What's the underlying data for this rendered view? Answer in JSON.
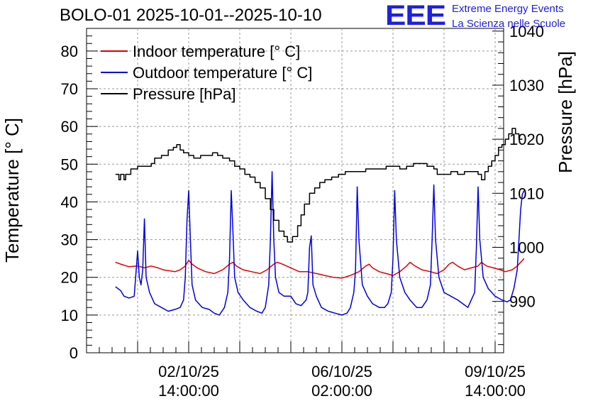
{
  "header": {
    "title": "BOLO-01 2025-10-01--2025-10-10",
    "logo_text": "EEE",
    "logo_line1": "Extreme Energy Events",
    "logo_line2": "La Scienza nelle Scuole"
  },
  "chart_data": {
    "type": "line",
    "title": "BOLO-01 2025-10-01--2025-10-10",
    "ylabel": "Temperature [° C]",
    "y2label": "Pressure [hPa]",
    "xlabel": "",
    "ylim": [
      0,
      86
    ],
    "y2lim": [
      980.5,
      1040.5
    ],
    "yticks": [
      "0",
      "10",
      "20",
      "30",
      "40",
      "50",
      "60",
      "70",
      "80"
    ],
    "y2ticks": [
      "990",
      "1000",
      "1010",
      "1020",
      "1030",
      "1040"
    ],
    "xlim": [
      0,
      245
    ],
    "xticks": [
      {
        "x": 60,
        "line1": "02/10/25",
        "line2": "14:00:00"
      },
      {
        "x": 150,
        "line1": "06/10/25",
        "line2": "02:00:00"
      },
      {
        "x": 240,
        "line1": "09/10/25",
        "line2": "14:00:00"
      }
    ],
    "grid": true,
    "legend_position": "top-left",
    "series": [
      {
        "name": "Indoor temperature [° C]",
        "color": "#e00000",
        "axis": "left",
        "points": [
          [
            17,
            24
          ],
          [
            20,
            23.5
          ],
          [
            25,
            22.8
          ],
          [
            30,
            23
          ],
          [
            34,
            22.5
          ],
          [
            38,
            23
          ],
          [
            42,
            22.5
          ],
          [
            45,
            22
          ],
          [
            48,
            21.8
          ],
          [
            52,
            21.5
          ],
          [
            55,
            22
          ],
          [
            58,
            23
          ],
          [
            60,
            24.5
          ],
          [
            62,
            23.5
          ],
          [
            65,
            22.5
          ],
          [
            70,
            21.5
          ],
          [
            75,
            21
          ],
          [
            80,
            22
          ],
          [
            84,
            23.5
          ],
          [
            86,
            24
          ],
          [
            88,
            23
          ],
          [
            92,
            22
          ],
          [
            97,
            21.5
          ],
          [
            102,
            21
          ],
          [
            106,
            22
          ],
          [
            110,
            23.5
          ],
          [
            112,
            24
          ],
          [
            115,
            23.5
          ],
          [
            120,
            22.5
          ],
          [
            125,
            21.5
          ],
          [
            130,
            21.5
          ],
          [
            135,
            21
          ],
          [
            140,
            20.5
          ],
          [
            145,
            20
          ],
          [
            150,
            19.8
          ],
          [
            155,
            20.5
          ],
          [
            160,
            21.5
          ],
          [
            164,
            23
          ],
          [
            166,
            23.5
          ],
          [
            168,
            22.5
          ],
          [
            172,
            21.5
          ],
          [
            176,
            21
          ],
          [
            180,
            20.5
          ],
          [
            184,
            21.5
          ],
          [
            188,
            23
          ],
          [
            190,
            24
          ],
          [
            193,
            23
          ],
          [
            197,
            22
          ],
          [
            202,
            21.5
          ],
          [
            206,
            21
          ],
          [
            210,
            22
          ],
          [
            213,
            23.5
          ],
          [
            215,
            24
          ],
          [
            218,
            23
          ],
          [
            222,
            22
          ],
          [
            226,
            22.5
          ],
          [
            230,
            23
          ],
          [
            232,
            24
          ],
          [
            235,
            23
          ],
          [
            239,
            22.5
          ],
          [
            243,
            22
          ],
          [
            246,
            21.5
          ],
          [
            250,
            22
          ],
          [
            253,
            23
          ],
          [
            255,
            24
          ],
          [
            257,
            25
          ]
        ]
      },
      {
        "name": "Outdoor temperature [° C]",
        "color": "#0000e0",
        "axis": "left",
        "points": [
          [
            17,
            17.5
          ],
          [
            20,
            16.5
          ],
          [
            22,
            15
          ],
          [
            25,
            14.5
          ],
          [
            28,
            15
          ],
          [
            30,
            27
          ],
          [
            31,
            20
          ],
          [
            32,
            18
          ],
          [
            33,
            22
          ],
          [
            34,
            35.5
          ],
          [
            35,
            20
          ],
          [
            37,
            16
          ],
          [
            40,
            13
          ],
          [
            44,
            12
          ],
          [
            48,
            11
          ],
          [
            52,
            11.5
          ],
          [
            55,
            12
          ],
          [
            57,
            14
          ],
          [
            58,
            20
          ],
          [
            59,
            35
          ],
          [
            60,
            43
          ],
          [
            61,
            30
          ],
          [
            62,
            18
          ],
          [
            64,
            14
          ],
          [
            68,
            12
          ],
          [
            72,
            11.5
          ],
          [
            75,
            10.5
          ],
          [
            78,
            10
          ],
          [
            81,
            12
          ],
          [
            83,
            16
          ],
          [
            84,
            25
          ],
          [
            85,
            43
          ],
          [
            86,
            32
          ],
          [
            87,
            20
          ],
          [
            89,
            16
          ],
          [
            92,
            14
          ],
          [
            96,
            12
          ],
          [
            100,
            11
          ],
          [
            103,
            10.5
          ],
          [
            105,
            12
          ],
          [
            107,
            18
          ],
          [
            108,
            30
          ],
          [
            109,
            48
          ],
          [
            110,
            30
          ],
          [
            111,
            20
          ],
          [
            113,
            16
          ],
          [
            116,
            15
          ],
          [
            120,
            15
          ],
          [
            123,
            13
          ],
          [
            126,
            12.5
          ],
          [
            129,
            14
          ],
          [
            130,
            16
          ],
          [
            131,
            28
          ],
          [
            132,
            31
          ],
          [
            133,
            18
          ],
          [
            135,
            15
          ],
          [
            138,
            12
          ],
          [
            142,
            11
          ],
          [
            146,
            10.5
          ],
          [
            150,
            10
          ],
          [
            153,
            10.5
          ],
          [
            155,
            12
          ],
          [
            157,
            16
          ],
          [
            158,
            22
          ],
          [
            159,
            44
          ],
          [
            160,
            30
          ],
          [
            162,
            18
          ],
          [
            165,
            15
          ],
          [
            168,
            13
          ],
          [
            172,
            12
          ],
          [
            175,
            12
          ],
          [
            177,
            13
          ],
          [
            179,
            16
          ],
          [
            180,
            25
          ],
          [
            181,
            43
          ],
          [
            182,
            30
          ],
          [
            184,
            20
          ],
          [
            187,
            16
          ],
          [
            190,
            14
          ],
          [
            194,
            12
          ],
          [
            197,
            12
          ],
          [
            200,
            14
          ],
          [
            202,
            18
          ],
          [
            203,
            30
          ],
          [
            204,
            44.5
          ],
          [
            205,
            30
          ],
          [
            207,
            20
          ],
          [
            210,
            16
          ],
          [
            214,
            15
          ],
          [
            218,
            14
          ],
          [
            221,
            13
          ],
          [
            224,
            12
          ],
          [
            226,
            14
          ],
          [
            228,
            16
          ],
          [
            229,
            28
          ],
          [
            230,
            44
          ],
          [
            231,
            30
          ],
          [
            233,
            20
          ],
          [
            236,
            17
          ],
          [
            240,
            15
          ],
          [
            244,
            14
          ],
          [
            247,
            13.5
          ],
          [
            249,
            14
          ],
          [
            251,
            17
          ],
          [
            253,
            22
          ],
          [
            254,
            30
          ],
          [
            255,
            38
          ],
          [
            256,
            42
          ],
          [
            257,
            43
          ]
        ]
      },
      {
        "name": "Pressure [hPa]",
        "color": "#000000",
        "axis": "right",
        "points": [
          [
            17,
            1013.5
          ],
          [
            19,
            1012.5
          ],
          [
            20,
            1013.5
          ],
          [
            22,
            1012.5
          ],
          [
            23,
            1013.5
          ],
          [
            26,
            1014.5
          ],
          [
            30,
            1015
          ],
          [
            34,
            1015
          ],
          [
            38,
            1015.5
          ],
          [
            40,
            1016.5
          ],
          [
            44,
            1017
          ],
          [
            48,
            1018
          ],
          [
            51,
            1018.5
          ],
          [
            53,
            1019
          ],
          [
            55,
            1018
          ],
          [
            57,
            1017.5
          ],
          [
            60,
            1017
          ],
          [
            63,
            1016.5
          ],
          [
            67,
            1017
          ],
          [
            71,
            1017
          ],
          [
            74,
            1017.5
          ],
          [
            77,
            1017
          ],
          [
            80,
            1016.5
          ],
          [
            84,
            1016
          ],
          [
            87,
            1015
          ],
          [
            90,
            1014.5
          ],
          [
            93,
            1013.5
          ],
          [
            96,
            1013
          ],
          [
            99,
            1012
          ],
          [
            102,
            1011
          ],
          [
            105,
            1009
          ],
          [
            108,
            1007
          ],
          [
            110,
            1005
          ],
          [
            113,
            1003
          ],
          [
            116,
            1002
          ],
          [
            118,
            1001
          ],
          [
            121,
            1002
          ],
          [
            124,
            1004
          ],
          [
            126,
            1006
          ],
          [
            128,
            1008
          ],
          [
            131,
            1010
          ],
          [
            134,
            1011
          ],
          [
            137,
            1012
          ],
          [
            140,
            1012.5
          ],
          [
            144,
            1013
          ],
          [
            148,
            1013.5
          ],
          [
            152,
            1014
          ],
          [
            156,
            1014
          ],
          [
            160,
            1014
          ],
          [
            164,
            1014.5
          ],
          [
            168,
            1014.5
          ],
          [
            172,
            1014.5
          ],
          [
            176,
            1015
          ],
          [
            180,
            1015
          ],
          [
            184,
            1014.5
          ],
          [
            188,
            1015
          ],
          [
            192,
            1015.5
          ],
          [
            196,
            1015.5
          ],
          [
            200,
            1015
          ],
          [
            204,
            1014.5
          ],
          [
            206,
            1013.5
          ],
          [
            210,
            1013.5
          ],
          [
            214,
            1014
          ],
          [
            218,
            1013.5
          ],
          [
            222,
            1014
          ],
          [
            226,
            1014
          ],
          [
            230,
            1013.5
          ],
          [
            232,
            1012.5
          ],
          [
            234,
            1014
          ],
          [
            236,
            1015
          ],
          [
            238,
            1016
          ],
          [
            240,
            1017
          ],
          [
            242,
            1018.5
          ],
          [
            244,
            1019
          ],
          [
            246,
            1020
          ],
          [
            248,
            1021
          ],
          [
            250,
            1022
          ],
          [
            252,
            1021
          ],
          [
            254,
            1020
          ],
          [
            256,
            1020
          ]
        ]
      }
    ]
  }
}
